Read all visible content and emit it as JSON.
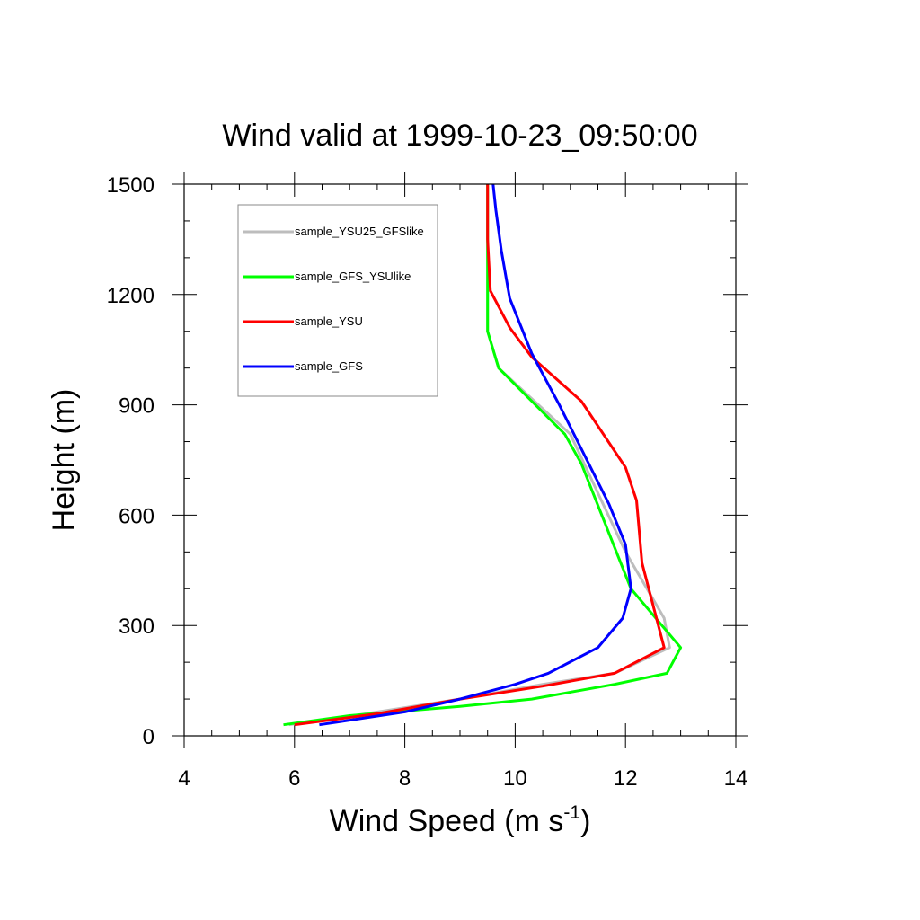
{
  "chart_data": {
    "type": "line",
    "title": "Wind valid at 1999-10-23_09:50:00",
    "xlabel": "Wind Speed (m s",
    "xlabel_superscript": "-1",
    "xlabel_suffix": ")",
    "ylabel": "Height (m)",
    "xlim": [
      4,
      14
    ],
    "ylim": [
      0,
      1500
    ],
    "x_ticks": [
      4,
      6,
      8,
      10,
      12,
      14
    ],
    "y_ticks": [
      0,
      300,
      600,
      900,
      1200,
      1500
    ],
    "x_tick_labels": [
      "4",
      "6",
      "8",
      "10",
      "12",
      "14"
    ],
    "y_tick_labels": [
      "0",
      "300",
      "600",
      "900",
      "1200",
      "1500"
    ],
    "x_minor_step": 0.5,
    "y_minor_step": 100,
    "grid": false,
    "legend_position": "top-left",
    "series": [
      {
        "name": "sample_YSU25_GFSlike",
        "color": "#bdbdbd",
        "points": [
          [
            5.9,
            30
          ],
          [
            7.3,
            60
          ],
          [
            9.0,
            100
          ],
          [
            10.5,
            140
          ],
          [
            11.8,
            170
          ],
          [
            12.8,
            240
          ],
          [
            12.7,
            320
          ],
          [
            12.0,
            500
          ],
          [
            11.0,
            820
          ],
          [
            9.7,
            1000
          ],
          [
            9.5,
            1100
          ],
          [
            9.5,
            1250
          ],
          [
            9.5,
            1500
          ]
        ]
      },
      {
        "name": "sample_GFS_YSUlike",
        "color": "#00ff00",
        "points": [
          [
            5.8,
            30
          ],
          [
            7.0,
            55
          ],
          [
            9.0,
            80
          ],
          [
            10.3,
            100
          ],
          [
            11.8,
            140
          ],
          [
            12.75,
            170
          ],
          [
            13.0,
            240
          ],
          [
            12.1,
            400
          ],
          [
            11.2,
            740
          ],
          [
            10.9,
            820
          ],
          [
            9.7,
            1000
          ],
          [
            9.5,
            1100
          ],
          [
            9.5,
            1250
          ],
          [
            9.5,
            1500
          ]
        ]
      },
      {
        "name": "sample_YSU",
        "color": "#ff0000",
        "points": [
          [
            6.0,
            30
          ],
          [
            7.5,
            60
          ],
          [
            9.0,
            100
          ],
          [
            10.5,
            135
          ],
          [
            11.8,
            170
          ],
          [
            12.7,
            240
          ],
          [
            12.3,
            470
          ],
          [
            12.2,
            640
          ],
          [
            12.0,
            730
          ],
          [
            11.6,
            820
          ],
          [
            11.2,
            910
          ],
          [
            10.3,
            1030
          ],
          [
            9.9,
            1110
          ],
          [
            9.55,
            1210
          ],
          [
            9.5,
            1350
          ],
          [
            9.5,
            1500
          ]
        ]
      },
      {
        "name": "sample_GFS",
        "color": "#0000ff",
        "points": [
          [
            6.45,
            30
          ],
          [
            8.0,
            65
          ],
          [
            9.0,
            100
          ],
          [
            10.0,
            140
          ],
          [
            10.6,
            170
          ],
          [
            11.5,
            240
          ],
          [
            11.95,
            320
          ],
          [
            12.1,
            400
          ],
          [
            12.0,
            520
          ],
          [
            11.7,
            630
          ],
          [
            11.4,
            720
          ],
          [
            10.8,
            900
          ],
          [
            10.3,
            1040
          ],
          [
            9.9,
            1190
          ],
          [
            9.75,
            1320
          ],
          [
            9.65,
            1430
          ],
          [
            9.6,
            1500
          ]
        ]
      }
    ]
  }
}
